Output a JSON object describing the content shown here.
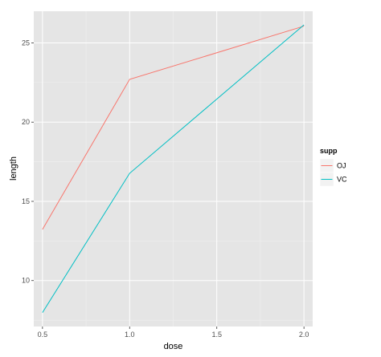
{
  "chart_data": {
    "type": "line",
    "xlabel": "dose",
    "ylabel": "length",
    "x": [
      0.5,
      1.0,
      2.0
    ],
    "series": [
      {
        "name": "OJ",
        "values": [
          13.23,
          22.7,
          26.06
        ],
        "color": "#f8766d"
      },
      {
        "name": "VC",
        "values": [
          7.98,
          16.77,
          26.14
        ],
        "color": "#00bfc4"
      }
    ],
    "xlim": [
      0.45,
      2.05
    ],
    "ylim": [
      7.1,
      27.0
    ],
    "xticks": [
      0.5,
      1.0,
      1.5,
      2.0
    ],
    "xtick_labels": [
      "0.5",
      "1.0",
      "1.5",
      "2.0"
    ],
    "yticks": [
      10,
      15,
      20,
      25
    ],
    "ytick_labels": [
      "10",
      "15",
      "20",
      "25"
    ],
    "grid": true,
    "legend": {
      "title": "supp",
      "position": "right"
    },
    "panel_background": "#e5e5e5",
    "grid_color": "#ffffff"
  }
}
